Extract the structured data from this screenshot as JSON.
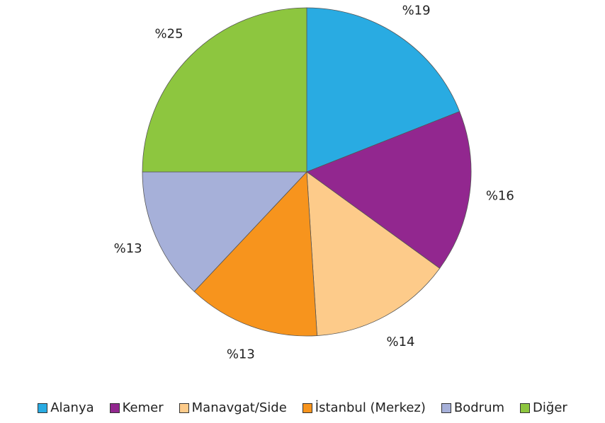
{
  "chart_data": {
    "type": "pie",
    "categories": [
      "Alanya",
      "Kemer",
      "Manavgat/Side",
      "İstanbul (Merkez)",
      "Bodrum",
      "Diğer"
    ],
    "values": [
      19,
      16,
      14,
      13,
      13,
      25
    ],
    "value_labels": [
      "%19",
      "%16",
      "%14",
      "%13",
      "%13",
      "%25"
    ],
    "colors": [
      "#29abe2",
      "#92278f",
      "#fdcb8a",
      "#f7941d",
      "#a6b0d9",
      "#8dc63f"
    ],
    "legend": "bottom"
  }
}
